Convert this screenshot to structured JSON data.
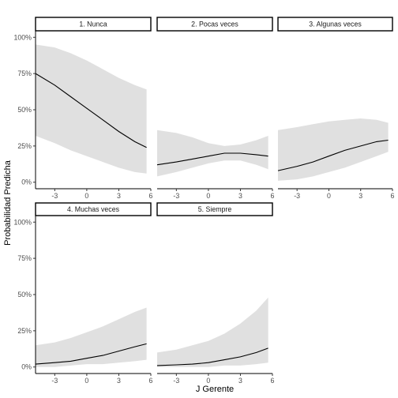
{
  "chart_data": {
    "type": "line",
    "xlabel": "J Gerente",
    "ylabel": "Probabilidad Predicha",
    "xlim": [
      -4.8,
      6
    ],
    "ylim": [
      0,
      1
    ],
    "xticks": [
      -3,
      0,
      3,
      6
    ],
    "xtick_labels": [
      "-3",
      "0",
      "3",
      "6"
    ],
    "yticks": [
      0,
      0.25,
      0.5,
      0.75,
      1
    ],
    "ytick_labels": [
      "0%",
      "25%",
      "50%",
      "75%",
      "100%"
    ],
    "grid": false,
    "band_color": "#e0e0e0",
    "line_color": "#000000",
    "panels": [
      {
        "title": "1. Nunca",
        "x": [
          -4.8,
          -3,
          -1.5,
          0,
          1.5,
          3,
          4.5,
          5.6
        ],
        "fit": [
          0.75,
          0.67,
          0.59,
          0.51,
          0.43,
          0.35,
          0.28,
          0.24
        ],
        "lower": [
          0.32,
          0.27,
          0.22,
          0.18,
          0.14,
          0.1,
          0.07,
          0.06
        ],
        "upper": [
          0.95,
          0.93,
          0.89,
          0.84,
          0.78,
          0.72,
          0.67,
          0.64
        ]
      },
      {
        "title": "2. Pocas veces",
        "x": [
          -4.8,
          -3,
          -1.5,
          0,
          1.5,
          3,
          4.5,
          5.6
        ],
        "fit": [
          0.12,
          0.14,
          0.16,
          0.18,
          0.2,
          0.2,
          0.19,
          0.18
        ],
        "lower": [
          0.04,
          0.07,
          0.1,
          0.13,
          0.15,
          0.15,
          0.12,
          0.09
        ],
        "upper": [
          0.36,
          0.34,
          0.31,
          0.27,
          0.25,
          0.26,
          0.29,
          0.32
        ]
      },
      {
        "title": "3. Algunas veces",
        "x": [
          -4.8,
          -3,
          -1.5,
          0,
          1.5,
          3,
          4.5,
          5.6
        ],
        "fit": [
          0.08,
          0.11,
          0.14,
          0.18,
          0.22,
          0.25,
          0.28,
          0.29
        ],
        "lower": [
          0.01,
          0.02,
          0.04,
          0.07,
          0.1,
          0.14,
          0.18,
          0.21
        ],
        "upper": [
          0.36,
          0.38,
          0.4,
          0.42,
          0.43,
          0.44,
          0.43,
          0.41
        ]
      },
      {
        "title": "4. Muchas veces",
        "x": [
          -4.8,
          -3,
          -1.5,
          0,
          1.5,
          3,
          4.5,
          5.6
        ],
        "fit": [
          0.02,
          0.03,
          0.04,
          0.06,
          0.08,
          0.11,
          0.14,
          0.16
        ],
        "lower": [
          0.0,
          0.0,
          0.01,
          0.02,
          0.02,
          0.03,
          0.04,
          0.05
        ],
        "upper": [
          0.15,
          0.17,
          0.2,
          0.24,
          0.28,
          0.33,
          0.38,
          0.41
        ]
      },
      {
        "title": "5. Siempre",
        "x": [
          -4.8,
          -3,
          -1.5,
          0,
          1.5,
          3,
          4.5,
          5.6
        ],
        "fit": [
          0.01,
          0.015,
          0.02,
          0.03,
          0.05,
          0.07,
          0.1,
          0.13
        ],
        "lower": [
          0.0,
          0.0,
          0.0,
          0.0,
          0.01,
          0.01,
          0.02,
          0.03
        ],
        "upper": [
          0.1,
          0.12,
          0.15,
          0.18,
          0.23,
          0.3,
          0.39,
          0.48
        ]
      }
    ]
  }
}
